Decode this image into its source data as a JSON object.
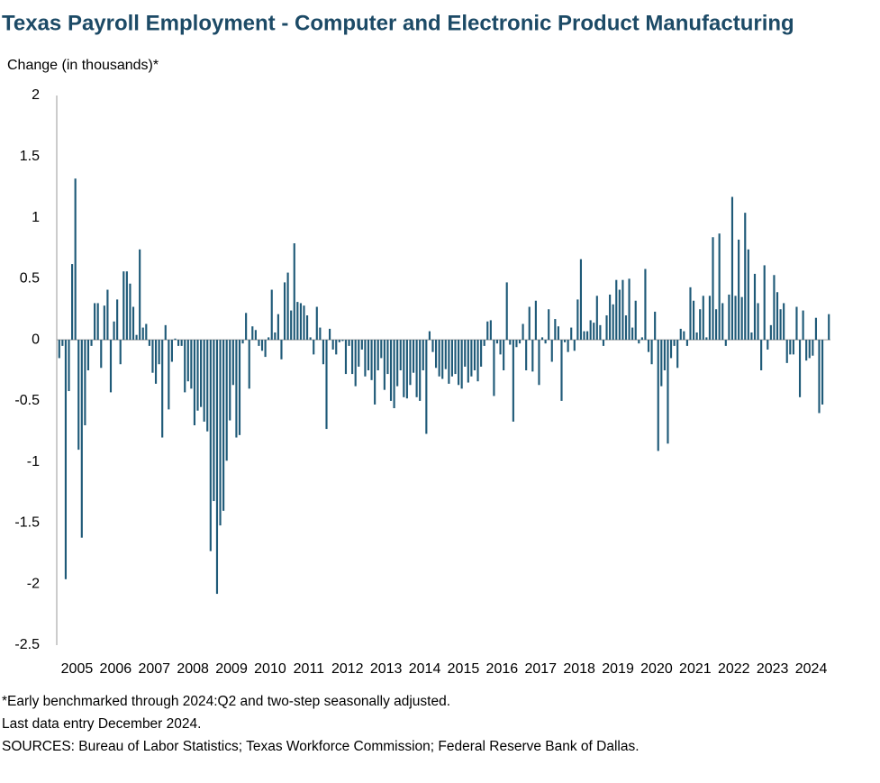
{
  "chart_data": {
    "type": "bar",
    "title": "Texas Payroll Employment - Computer and Electronic Product Manufacturing",
    "y_label": "Change (in thousands)*",
    "notes": [
      "*Early benchmarked through 2024:Q2 and two-step seasonally adjusted.",
      "Last data entry December 2024.",
      "SOURCES:  Bureau of Labor Statistics; Texas Workforce Commission;  Federal Reserve Bank of Dallas."
    ],
    "color": "#1f5a78",
    "ylim": [
      -2.5,
      2
    ],
    "yticks": [
      2,
      1.5,
      1,
      0.5,
      0,
      -0.5,
      -1,
      -1.5,
      -2,
      -2.5
    ],
    "categories": [
      "2005",
      null,
      null,
      null,
      null,
      null,
      null,
      null,
      null,
      null,
      null,
      null,
      "2006",
      null,
      null,
      null,
      null,
      null,
      null,
      null,
      null,
      null,
      null,
      null,
      "2007",
      null,
      null,
      null,
      null,
      null,
      null,
      null,
      null,
      null,
      null,
      null,
      "2008",
      null,
      null,
      null,
      null,
      null,
      null,
      null,
      null,
      null,
      null,
      null,
      "2009",
      null,
      null,
      null,
      null,
      null,
      null,
      null,
      null,
      null,
      null,
      null,
      "2010",
      null,
      null,
      null,
      null,
      null,
      null,
      null,
      null,
      null,
      null,
      null,
      "2011",
      null,
      null,
      null,
      null,
      null,
      null,
      null,
      null,
      null,
      null,
      null,
      "2012",
      null,
      null,
      null,
      null,
      null,
      null,
      null,
      null,
      null,
      null,
      null,
      "2013",
      null,
      null,
      null,
      null,
      null,
      null,
      null,
      null,
      null,
      null,
      null,
      "2014",
      null,
      null,
      null,
      null,
      null,
      null,
      null,
      null,
      null,
      null,
      null,
      "2015",
      null,
      null,
      null,
      null,
      null,
      null,
      null,
      null,
      null,
      null,
      null,
      "2016",
      null,
      null,
      null,
      null,
      null,
      null,
      null,
      null,
      null,
      null,
      null,
      "2017",
      null,
      null,
      null,
      null,
      null,
      null,
      null,
      null,
      null,
      null,
      null,
      "2018",
      null,
      null,
      null,
      null,
      null,
      null,
      null,
      null,
      null,
      null,
      null,
      "2019",
      null,
      null,
      null,
      null,
      null,
      null,
      null,
      null,
      null,
      null,
      null,
      "2020",
      null,
      null,
      null,
      null,
      null,
      null,
      null,
      null,
      null,
      null,
      null,
      "2021",
      null,
      null,
      null,
      null,
      null,
      null,
      null,
      null,
      null,
      null,
      null,
      "2022",
      null,
      null,
      null,
      null,
      null,
      null,
      null,
      null,
      null,
      null,
      null,
      "2023",
      null,
      null,
      null,
      null,
      null,
      null,
      null,
      null,
      null,
      null,
      null,
      "2024",
      null,
      null,
      null,
      null,
      null,
      null,
      null,
      null,
      null,
      null,
      null
    ],
    "values": [
      -0.15,
      -0.05,
      -1.96,
      -0.42,
      0.62,
      1.32,
      -0.9,
      -1.62,
      -0.7,
      -0.25,
      -0.05,
      0.3,
      0.3,
      -0.23,
      0.28,
      0.41,
      -0.43,
      0.15,
      0.33,
      -0.2,
      0.56,
      0.56,
      0.46,
      0.27,
      0.04,
      0.74,
      0.1,
      0.13,
      -0.05,
      -0.27,
      -0.36,
      -0.2,
      -0.8,
      0.12,
      -0.57,
      -0.18,
      0.01,
      -0.05,
      -0.05,
      -0.43,
      -0.34,
      -0.4,
      -0.7,
      -0.58,
      -0.55,
      -0.67,
      -0.75,
      -1.73,
      -1.32,
      -2.08,
      -1.52,
      -1.4,
      -0.99,
      -0.66,
      -0.37,
      -0.8,
      -0.78,
      -0.03,
      0.22,
      -0.4,
      0.11,
      0.08,
      -0.05,
      -0.09,
      -0.14,
      0.02,
      0.41,
      0.06,
      0.21,
      -0.16,
      0.47,
      0.55,
      0.24,
      0.79,
      0.31,
      0.3,
      0.28,
      0.2,
      0.02,
      -0.12,
      0.27,
      0.1,
      -0.2,
      -0.73,
      0.09,
      -0.08,
      -0.12,
      -0.02,
      -0.01,
      -0.28,
      -0.05,
      -0.28,
      -0.38,
      -0.22,
      -0.08,
      -0.3,
      -0.25,
      -0.33,
      -0.53,
      -0.25,
      -0.15,
      -0.41,
      -0.28,
      -0.5,
      -0.56,
      -0.38,
      -0.25,
      -0.47,
      -0.48,
      -0.37,
      -0.27,
      -0.47,
      -0.5,
      -0.25,
      -0.77,
      0.07,
      -0.1,
      -0.23,
      -0.3,
      -0.32,
      -0.24,
      -0.36,
      -0.3,
      -0.28,
      -0.37,
      -0.4,
      -0.22,
      -0.35,
      -0.3,
      -0.25,
      -0.34,
      -0.22,
      -0.05,
      0.15,
      0.16,
      -0.46,
      -0.03,
      -0.12,
      -0.25,
      0.47,
      -0.04,
      -0.67,
      -0.06,
      -0.03,
      0.13,
      -0.25,
      0.27,
      -0.26,
      0.32,
      -0.37,
      0.02,
      -0.03,
      0.25,
      -0.18,
      0.17,
      0.11,
      -0.5,
      -0.02,
      -0.1,
      0.1,
      -0.09,
      0.33,
      0.66,
      0.07,
      0.07,
      0.16,
      0.14,
      0.36,
      0.12,
      -0.05,
      0.2,
      0.37,
      0.29,
      0.49,
      0.41,
      0.49,
      0.2,
      0.5,
      0.1,
      0.32,
      -0.03,
      0.02,
      0.58,
      -0.1,
      -0.2,
      0.23,
      -0.91,
      -0.38,
      -0.25,
      -0.85,
      -0.15,
      -0.05,
      -0.23,
      0.09,
      0.07,
      -0.05,
      0.43,
      0.32,
      0.06,
      0.25,
      0.36,
      0.02,
      0.36,
      0.84,
      0.25,
      0.87,
      0.3,
      -0.05,
      0.37,
      1.17,
      0.36,
      0.82,
      0.35,
      1.04,
      0.74,
      0.06,
      0.54,
      0.3,
      -0.25,
      0.61,
      -0.08,
      0.12,
      0.53,
      0.39,
      0.25,
      0.3,
      -0.19,
      -0.12,
      -0.12,
      0.27,
      -0.47,
      0.24,
      -0.17,
      -0.15,
      -0.13,
      0.18,
      -0.6,
      -0.53,
      0.0,
      0.21
    ]
  }
}
